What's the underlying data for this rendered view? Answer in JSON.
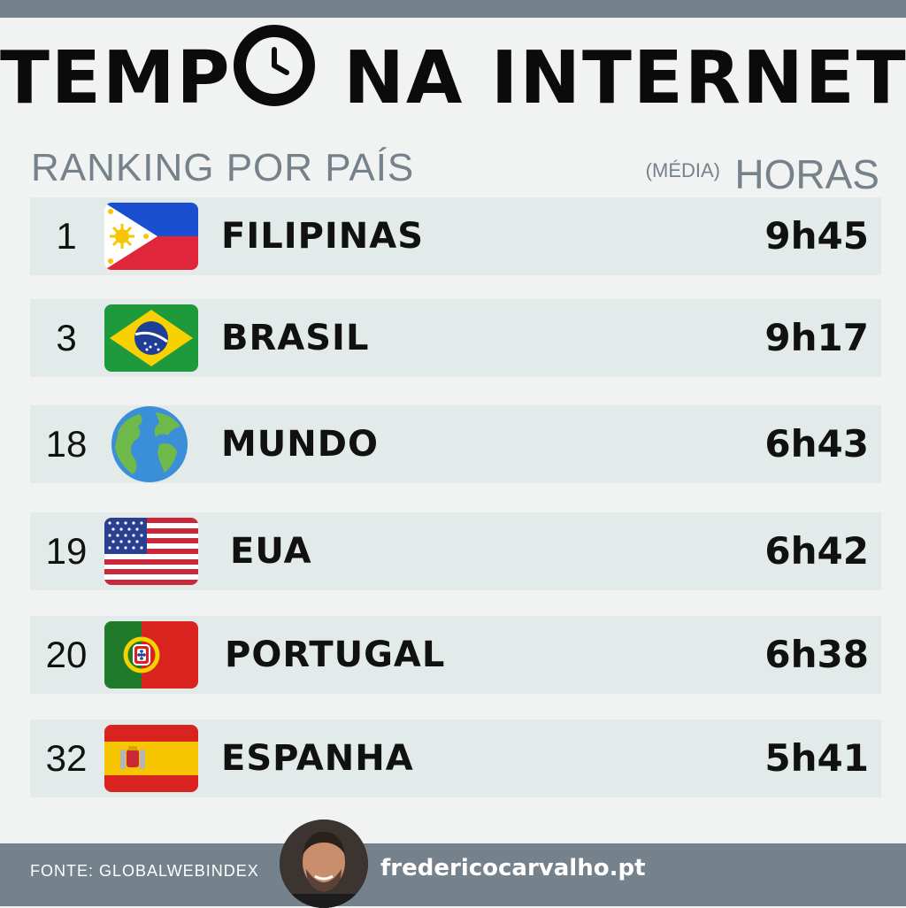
{
  "header": {
    "title_part1": "TEMP",
    "title_part2": " NA INTERNET",
    "subtitle": "RANKING POR PAÍS",
    "unit_note": "(MÉDIA)",
    "unit_label": "HORAS"
  },
  "rows": [
    {
      "rank": "1",
      "country": "FILIPINAS",
      "time": "9h45",
      "flag": "philippines-flag-icon"
    },
    {
      "rank": "3",
      "country": "BRASIL",
      "time": "9h17",
      "flag": "brazil-flag-icon"
    },
    {
      "rank": "18",
      "country": "MUNDO",
      "time": "6h43",
      "flag": "globe-icon"
    },
    {
      "rank": "19",
      "country": "EUA",
      "time": "6h42",
      "flag": "usa-flag-icon"
    },
    {
      "rank": "20",
      "country": "PORTUGAL",
      "time": "6h38",
      "flag": "portugal-flag-icon"
    },
    {
      "rank": "32",
      "country": "ESPANHA",
      "time": "5h41",
      "flag": "spain-flag-icon"
    }
  ],
  "footer": {
    "source": "FONTE: GLOBALWEBINDEX",
    "website": "fredericocarvalho.pt"
  },
  "colors": {
    "bar": "#76828b",
    "row_bg": "#e2eaea",
    "text": "#111111"
  }
}
